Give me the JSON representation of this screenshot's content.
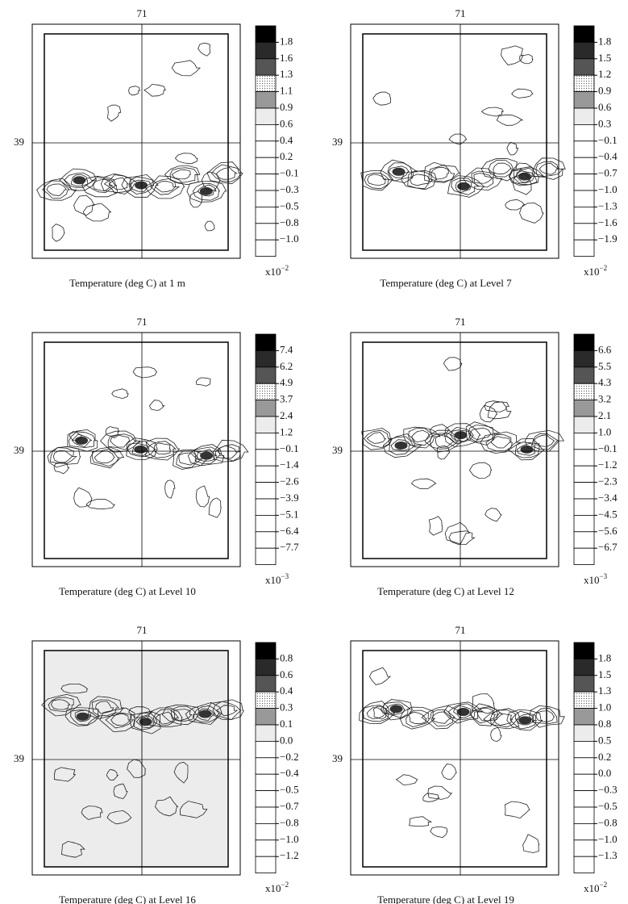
{
  "panels": [
    {
      "top_label": "71",
      "side_label": "39",
      "scale": {
        "base": "x10",
        "exponent": "−2"
      },
      "caption": "Temperature (deg C) at 1 m",
      "colorbar_labels": [
        "1.8",
        "1.6",
        "1.3",
        "1.1",
        "0.9",
        "0.6",
        "0.4",
        "0.2",
        "−0.1",
        "−0.3",
        "−0.5",
        "−0.8",
        "−1.0"
      ]
    },
    {
      "top_label": "71",
      "side_label": "39",
      "scale": {
        "base": "x10",
        "exponent": "−2"
      },
      "caption": "Temperature (deg C) at Level 7",
      "colorbar_labels": [
        "1.8",
        "1.5",
        "1.2",
        "0.9",
        "0.6",
        "0.3",
        "−0.1",
        "−0.4",
        "−0.7",
        "−1.0",
        "−1.3",
        "−1.6",
        "−1.9"
      ]
    },
    {
      "top_label": "71",
      "side_label": "39",
      "scale": {
        "base": "x10",
        "exponent": "−3"
      },
      "caption": "Temperature (deg C) at Level 10",
      "colorbar_labels": [
        "7.4",
        "6.2",
        "4.9",
        "3.7",
        "2.4",
        "1.2",
        "−0.1",
        "−1.4",
        "−2.6",
        "−3.9",
        "−5.1",
        "−6.4",
        "−7.7"
      ]
    },
    {
      "top_label": "71",
      "side_label": "39",
      "scale": {
        "base": "x10",
        "exponent": "−3"
      },
      "caption": "Temperature (deg C) at Level 12",
      "colorbar_labels": [
        "6.6",
        "5.5",
        "4.3",
        "3.2",
        "2.1",
        "1.0",
        "−0.1",
        "−1.2",
        "−2.3",
        "−3.4",
        "−4.5",
        "−5.6",
        "−6.7"
      ]
    },
    {
      "top_label": "71",
      "side_label": "39",
      "scale": {
        "base": "x10",
        "exponent": "−2"
      },
      "caption": "Temperature (deg C) at Level 16",
      "colorbar_labels": [
        "0.8",
        "0.6",
        "0.4",
        "0.3",
        "0.1",
        "0.0",
        "−0.2",
        "−0.4",
        "−0.5",
        "−0.7",
        "−0.8",
        "−1.0",
        "−1.2"
      ]
    },
    {
      "top_label": "71",
      "side_label": "39",
      "scale": {
        "base": "x10",
        "exponent": "−2"
      },
      "caption": "Temperature (deg C) at Level 19",
      "colorbar_labels": [
        "1.8",
        "1.5",
        "1.3",
        "1.0",
        "0.8",
        "0.5",
        "0.2",
        "0.0",
        "−0.3",
        "−0.5",
        "−0.8",
        "−1.0",
        "−1.3"
      ]
    }
  ]
}
